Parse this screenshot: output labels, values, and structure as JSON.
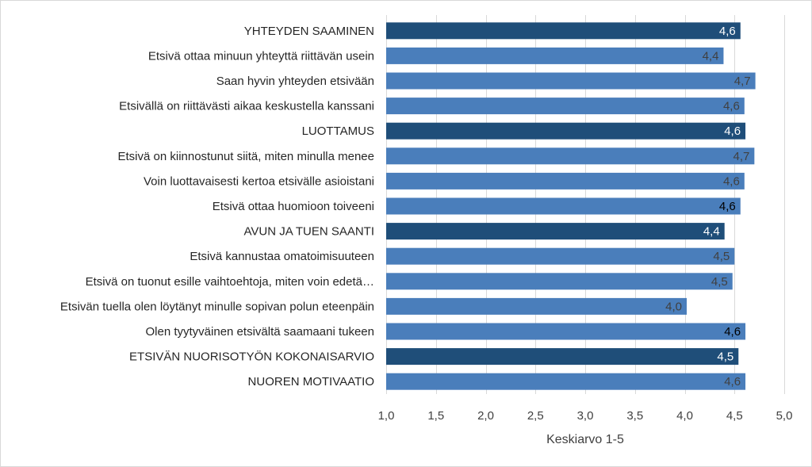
{
  "chart_data": {
    "type": "bar",
    "orientation": "horizontal",
    "categories": [
      "YHTEYDEN SAAMINEN",
      "Etsivä ottaa minuun yhteyttä riittävän usein",
      "Saan hyvin yhteyden etsivään",
      "Etsivällä on riittävästi aikaa keskustella kanssani",
      "LUOTTAMUS",
      "Etsivä on kiinnostunut siitä, miten minulla menee",
      "Voin luottavaisesti kertoa etsivälle asioistani",
      "Etsivä ottaa huomioon toiveeni",
      "AVUN JA TUEN SAANTI",
      "Etsivä kannustaa omatoimisuuteen",
      "Etsivä on tuonut esille vaihtoehtoja, miten voin edetä…",
      "Etsivän tuella olen löytänyt minulle sopivan polun eteenpäin",
      "Olen tyytyväinen etsivältä saamaani tukeen",
      "ETSIVÄN NUORISOTYÖN KOKONAISARVIO",
      "NUOREN MOTIVAATIO"
    ],
    "values": [
      4.56,
      4.39,
      4.71,
      4.6,
      4.61,
      4.7,
      4.6,
      4.56,
      4.4,
      4.5,
      4.48,
      4.02,
      4.61,
      4.54,
      4.61
    ],
    "data_labels": [
      "4,6",
      "4,4",
      "4,7",
      "4,6",
      "4,6",
      "4,7",
      "4,6",
      "4,6",
      "4,4",
      "4,5",
      "4,5",
      "4,0",
      "4,6",
      "4,5",
      "4,6"
    ],
    "highlight": [
      true,
      false,
      false,
      false,
      true,
      false,
      false,
      false,
      true,
      false,
      false,
      false,
      false,
      true,
      false
    ],
    "label_colors": [
      "#ffffff",
      "#404040",
      "#404040",
      "#404040",
      "#ffffff",
      "#404040",
      "#404040",
      "#000000",
      "#ffffff",
      "#404040",
      "#404040",
      "#404040",
      "#000000",
      "#ffffff",
      "#404040"
    ],
    "xlim": [
      1.0,
      5.0
    ],
    "xticks": [
      "1,0",
      "1,5",
      "2,0",
      "2,5",
      "3,0",
      "3,5",
      "4,0",
      "4,5",
      "5,0"
    ],
    "xtick_values": [
      1.0,
      1.5,
      2.0,
      2.5,
      3.0,
      3.5,
      4.0,
      4.5,
      5.0
    ],
    "xlabel": "Keskiarvo 1-5",
    "grid": true,
    "colors": {
      "summary_bar": "#1f4e79",
      "item_bar": "#4a7ebb"
    }
  }
}
